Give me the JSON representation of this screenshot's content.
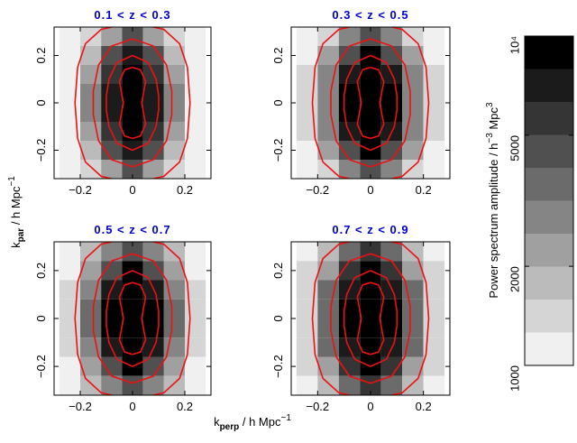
{
  "chart_data": {
    "type": "heatmap",
    "xlabel": {
      "main": "k",
      "sub": "perp",
      "rest": " / h Mpc",
      "sup": "−1"
    },
    "ylabel": {
      "main": "k",
      "sub": "par",
      "rest": " / h Mpc",
      "sup": "−1"
    },
    "xlim": [
      -0.3,
      0.3
    ],
    "ylim": [
      -0.32,
      0.32
    ],
    "xticks": [
      {
        "value": -0.2,
        "label": "−0.2"
      },
      0,
      0.2
    ],
    "yticks": [
      {
        "value": -0.2,
        "label": "−0.2"
      },
      0,
      0.2
    ],
    "x_edges": [
      -0.28,
      -0.2,
      -0.12,
      -0.04,
      0.04,
      0.12,
      0.2,
      0.28
    ],
    "y_edges": [
      0.32,
      0.24,
      0.16,
      0.08,
      0,
      -0.08,
      -0.16,
      -0.24,
      -0.32
    ],
    "title_color": "#0000cc",
    "contour_color": "#ee1111",
    "color_levels": 10,
    "contours": [
      {
        "x": [
          0,
          0.12,
          0.18,
          0.21,
          0.22
        ],
        "y": [
          0.34,
          0.31,
          0.25,
          0.15,
          0
        ]
      },
      {
        "x": [
          0,
          0.08,
          0.13,
          0.15,
          0.15
        ],
        "y": [
          0.27,
          0.24,
          0.16,
          0.05,
          0
        ]
      },
      {
        "x": [
          0,
          0.06,
          0.09,
          0.1,
          0.1
        ],
        "y": [
          0.2,
          0.17,
          0.1,
          0.03,
          0
        ]
      },
      {
        "x": [
          0,
          0.03,
          0.05,
          0.04,
          0.035
        ],
        "y": [
          0.15,
          0.14,
          0.09,
          0.03,
          0
        ]
      }
    ],
    "panels": [
      {
        "title": "0.1 < z < 0.3",
        "values": [
          [
            1000,
            1300,
            2500,
            4000,
            2500,
            1300,
            1000
          ],
          [
            1100,
            1800,
            4000,
            7000,
            4000,
            1800,
            1100
          ],
          [
            1200,
            2500,
            6000,
            12000,
            6000,
            2500,
            1200
          ],
          [
            1200,
            2800,
            7000,
            15000,
            7000,
            2800,
            1200
          ],
          [
            1200,
            2800,
            7000,
            15000,
            7000,
            2800,
            1200
          ],
          [
            1200,
            2500,
            6000,
            12000,
            6000,
            2500,
            1200
          ],
          [
            1100,
            1800,
            4000,
            7000,
            4000,
            1800,
            1100
          ],
          [
            1000,
            1300,
            2500,
            4000,
            2500,
            1300,
            1000
          ]
        ]
      },
      {
        "title": "0.3 < z < 0.5",
        "values": [
          [
            1100,
            1500,
            3000,
            5000,
            3000,
            1500,
            1100
          ],
          [
            1200,
            2200,
            4500,
            9000,
            4500,
            2200,
            1200
          ],
          [
            1300,
            2800,
            6500,
            13000,
            6500,
            2800,
            1300
          ],
          [
            1300,
            3000,
            8000,
            16000,
            8000,
            3000,
            1300
          ],
          [
            1300,
            3000,
            8000,
            16000,
            8000,
            3000,
            1300
          ],
          [
            1300,
            2800,
            6500,
            13000,
            6500,
            2800,
            1300
          ],
          [
            1200,
            2200,
            4500,
            9000,
            4500,
            2200,
            1200
          ],
          [
            1100,
            1500,
            3000,
            5000,
            3000,
            1500,
            1100
          ]
        ]
      },
      {
        "title": "0.5 < z < 0.7",
        "values": [
          [
            1100,
            1600,
            3000,
            5000,
            3000,
            1600,
            1100
          ],
          [
            1200,
            2300,
            5000,
            9000,
            5000,
            2300,
            1200
          ],
          [
            1400,
            3000,
            7000,
            14000,
            7000,
            3000,
            1400
          ],
          [
            1400,
            3300,
            8500,
            18000,
            8500,
            3300,
            1400
          ],
          [
            1400,
            3300,
            8500,
            18000,
            8500,
            3300,
            1400
          ],
          [
            1400,
            3000,
            7000,
            14000,
            7000,
            3000,
            1400
          ],
          [
            1200,
            2300,
            5000,
            9000,
            5000,
            2300,
            1200
          ],
          [
            1100,
            1600,
            3000,
            5000,
            3000,
            1600,
            1100
          ]
        ]
      },
      {
        "title": "0.7 < z < 0.9",
        "values": [
          [
            1100,
            1700,
            3200,
            5500,
            3200,
            1700,
            1100
          ],
          [
            1300,
            2500,
            5500,
            10000,
            5500,
            2500,
            1300
          ],
          [
            1500,
            3200,
            7500,
            15000,
            7500,
            3200,
            1500
          ],
          [
            1500,
            3500,
            9000,
            19000,
            9000,
            3500,
            1500
          ],
          [
            1500,
            3500,
            9000,
            19000,
            9000,
            3500,
            1500
          ],
          [
            1500,
            3200,
            7500,
            15000,
            7500,
            3200,
            1500
          ],
          [
            1300,
            2500,
            5500,
            10000,
            5500,
            2500,
            1300
          ],
          [
            1100,
            1700,
            3200,
            5500,
            3200,
            1700,
            1100
          ]
        ]
      }
    ],
    "colorbar": {
      "label": "Power spectrum amplitude / h",
      "sup1": "−3",
      "mid": " Mpc",
      "sup2": "3",
      "lim": [
        1000,
        10000
      ],
      "ticks": [
        1000,
        2000,
        5000,
        {
          "value": 10000,
          "label": "10⁴"
        }
      ]
    }
  }
}
